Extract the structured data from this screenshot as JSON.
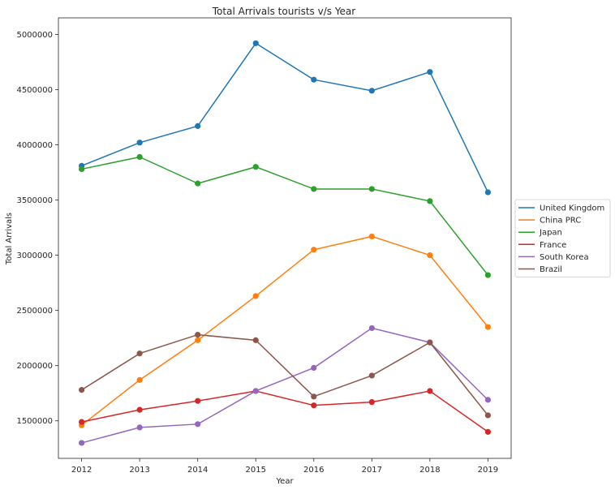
{
  "chart_data": {
    "type": "line",
    "title": "Total Arrivals tourists v/s Year",
    "xlabel": "Year",
    "ylabel": "Total Arrivals",
    "x": [
      2012,
      2013,
      2014,
      2015,
      2016,
      2017,
      2018,
      2019
    ],
    "x_tick_labels": [
      "2012",
      "2013",
      "2014",
      "2015",
      "2016",
      "2017",
      "2018",
      "2019"
    ],
    "ylim": [
      1160000,
      5150000
    ],
    "y_ticks": [
      1500000,
      2000000,
      2500000,
      3000000,
      3500000,
      4000000,
      4500000,
      5000000
    ],
    "y_tick_labels": [
      "1500000",
      "2000000",
      "2500000",
      "3000000",
      "3500000",
      "4000000",
      "4500000",
      "5000000"
    ],
    "grid": false,
    "legend_position": "right, outside plot",
    "series": [
      {
        "name": "United Kingdom",
        "color": "#1f77b4",
        "values": [
          3810000,
          4020000,
          4170000,
          4920000,
          4590000,
          4490000,
          4660000,
          3570000
        ]
      },
      {
        "name": "China PRC",
        "color": "#ff7f0e",
        "values": [
          1460000,
          1870000,
          2230000,
          2630000,
          3050000,
          3170000,
          3000000,
          2350000
        ]
      },
      {
        "name": "Japan",
        "color": "#2ca02c",
        "values": [
          3780000,
          3890000,
          3650000,
          3800000,
          3600000,
          3600000,
          3490000,
          2820000
        ]
      },
      {
        "name": "France",
        "color": "#d62728",
        "values": [
          1490000,
          1600000,
          1680000,
          1770000,
          1640000,
          1670000,
          1770000,
          1400000
        ]
      },
      {
        "name": "South Korea",
        "color": "#9467bd",
        "values": [
          1300000,
          1440000,
          1470000,
          1770000,
          1980000,
          2340000,
          2210000,
          1690000
        ]
      },
      {
        "name": "Brazil",
        "color": "#8c564b",
        "values": [
          1780000,
          2110000,
          2280000,
          2230000,
          1720000,
          1910000,
          2210000,
          1550000
        ]
      }
    ]
  }
}
